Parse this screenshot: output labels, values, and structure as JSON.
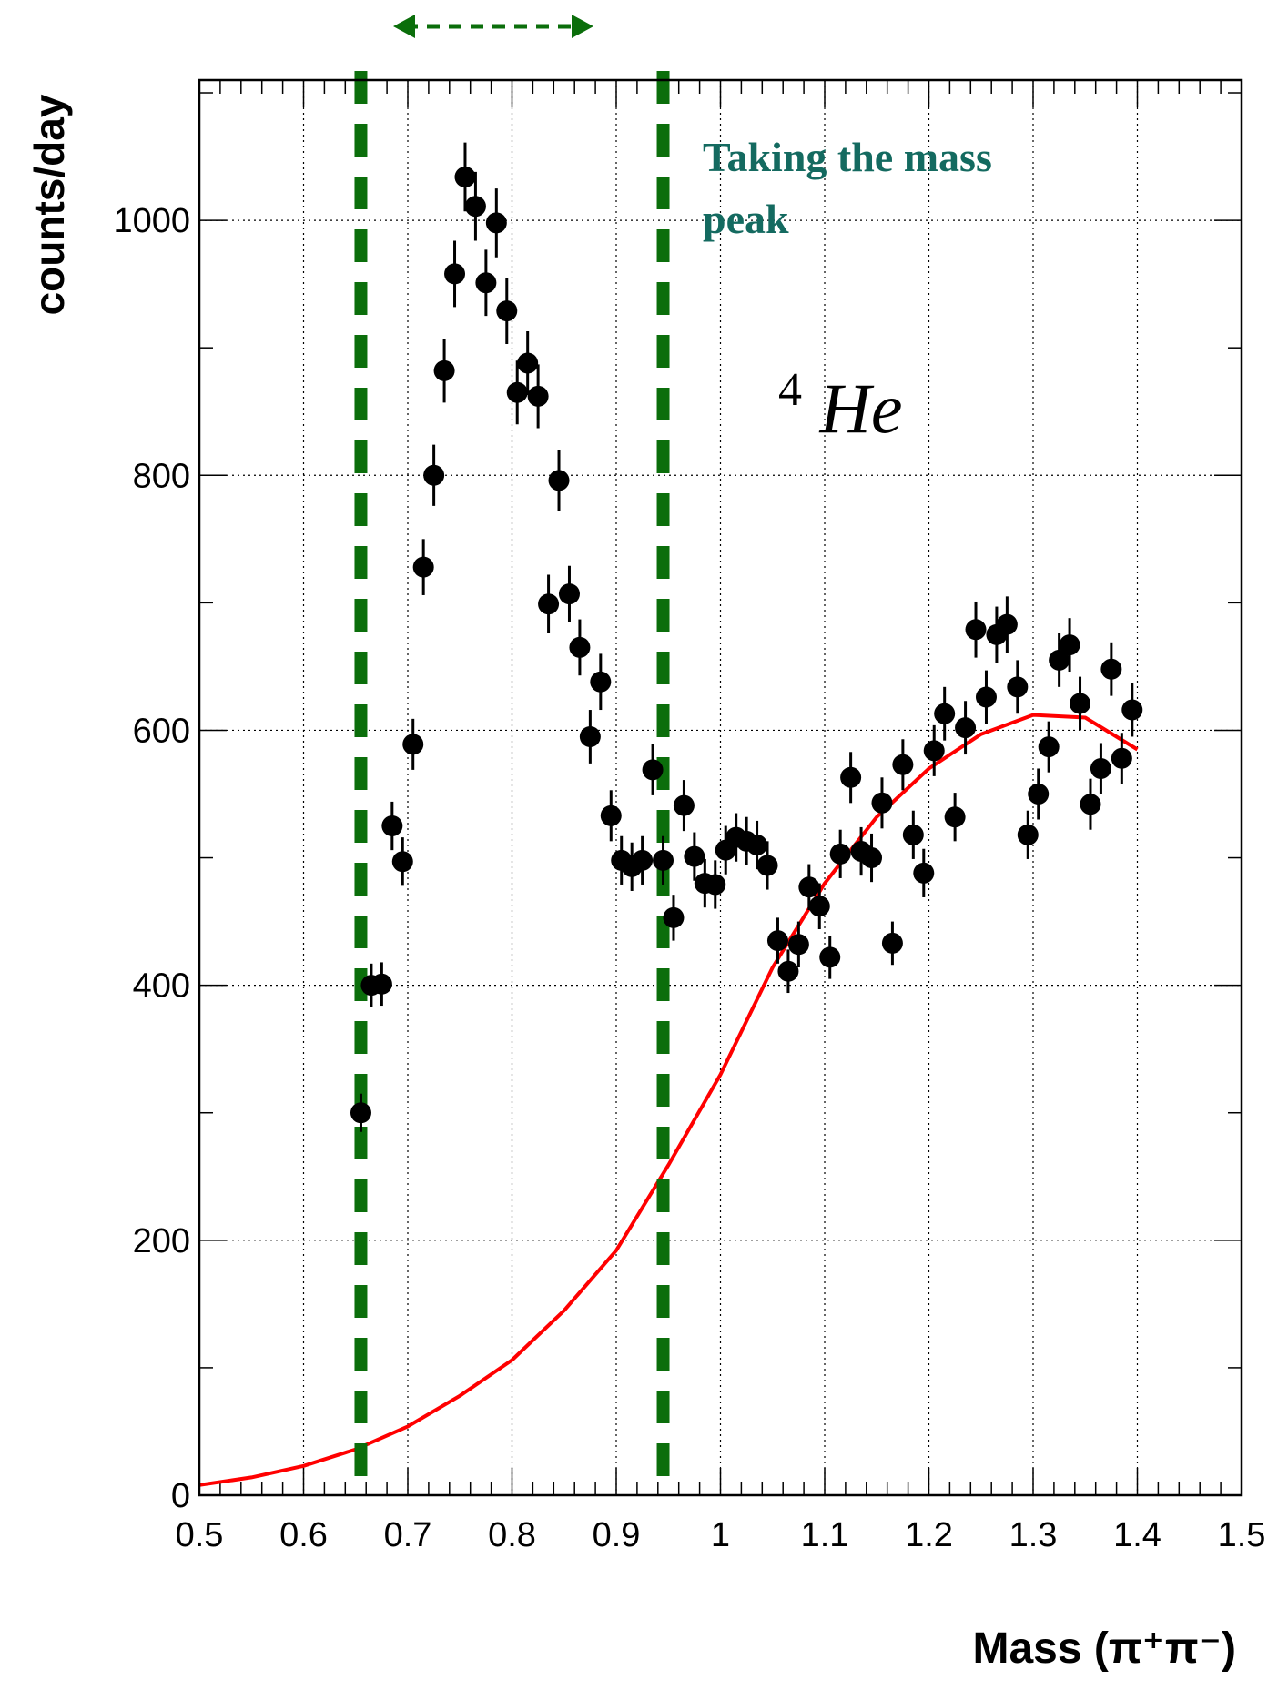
{
  "chart_data": {
    "type": "scatter",
    "title": "",
    "xlabel": "Mass (π⁺π⁻)",
    "ylabel": "counts/day",
    "xlim": [
      0.5,
      1.5
    ],
    "ylim": [
      0,
      1110
    ],
    "x_ticks": [
      "0.5",
      "0.6",
      "0.7",
      "0.8",
      "0.9",
      "1",
      "1.1",
      "1.2",
      "1.3",
      "1.4",
      "1.5"
    ],
    "y_ticks": [
      "0",
      "200",
      "400",
      "600",
      "800",
      "1000"
    ],
    "grid": true,
    "annotations": {
      "peak_text_line1": "Taking the mass",
      "peak_text_line2": "peak",
      "target_sup": "4",
      "target_main": "He"
    },
    "selection_window": {
      "low": 0.655,
      "high": 0.945,
      "color": "#0b6e0b"
    },
    "series": [
      {
        "kind": "points",
        "color": "#000000",
        "x": [
          0.655,
          0.665,
          0.675,
          0.685,
          0.695,
          0.705,
          0.715,
          0.725,
          0.735,
          0.745,
          0.755,
          0.765,
          0.775,
          0.785,
          0.795,
          0.805,
          0.815,
          0.825,
          0.835,
          0.845,
          0.855,
          0.865,
          0.875,
          0.885,
          0.895,
          0.905,
          0.915,
          0.925,
          0.935,
          0.945,
          0.955,
          0.965,
          0.975,
          0.985,
          0.995,
          1.005,
          1.015,
          1.025,
          1.035,
          1.045,
          1.055,
          1.065,
          1.075,
          1.085,
          1.095,
          1.105,
          1.115,
          1.125,
          1.135,
          1.145,
          1.155,
          1.165,
          1.175,
          1.185,
          1.195,
          1.205,
          1.215,
          1.225,
          1.235,
          1.245,
          1.255,
          1.265,
          1.275,
          1.285,
          1.295,
          1.305,
          1.315,
          1.325,
          1.335,
          1.345,
          1.355,
          1.365,
          1.375,
          1.385,
          1.395
        ],
        "y": [
          300,
          400,
          401,
          525,
          497,
          589,
          728,
          800,
          882,
          958,
          1034,
          1011,
          951,
          998,
          929,
          865,
          888,
          862,
          699,
          796,
          707,
          665,
          595,
          638,
          533,
          498,
          493,
          498,
          569,
          498,
          453,
          541,
          501,
          480,
          479,
          506,
          516,
          513,
          510,
          494,
          435,
          411,
          432,
          477,
          462,
          422,
          503,
          563,
          505,
          500,
          543,
          433,
          573,
          518,
          488,
          584,
          613,
          532,
          602,
          679,
          626,
          675,
          683,
          634,
          518,
          550,
          587,
          655,
          667,
          621,
          542,
          570,
          648,
          578,
          616
        ],
        "yerr": [
          15,
          17,
          17,
          19,
          19,
          20,
          22,
          24,
          25,
          26,
          27,
          27,
          26,
          27,
          26,
          25,
          25,
          25,
          23,
          24,
          22,
          22,
          21,
          22,
          20,
          19,
          19,
          19,
          20,
          19,
          18,
          20,
          19,
          19,
          19,
          19,
          19,
          19,
          19,
          19,
          18,
          17,
          18,
          18,
          18,
          17,
          19,
          20,
          19,
          19,
          20,
          17,
          20,
          19,
          19,
          20,
          21,
          19,
          21,
          22,
          21,
          22,
          22,
          21,
          19,
          20,
          20,
          21,
          21,
          21,
          20,
          20,
          21,
          20,
          21
        ]
      },
      {
        "kind": "curve",
        "color": "#ff0000",
        "x": [
          0.5,
          0.55,
          0.6,
          0.65,
          0.7,
          0.75,
          0.8,
          0.85,
          0.9,
          0.95,
          1.0,
          1.05,
          1.1,
          1.15,
          1.2,
          1.25,
          1.3,
          1.35,
          1.4
        ],
        "y": [
          8,
          14,
          23,
          36,
          54,
          78,
          106,
          145,
          192,
          259,
          330,
          414,
          480,
          532,
          570,
          597,
          612,
          610,
          585
        ]
      }
    ]
  }
}
